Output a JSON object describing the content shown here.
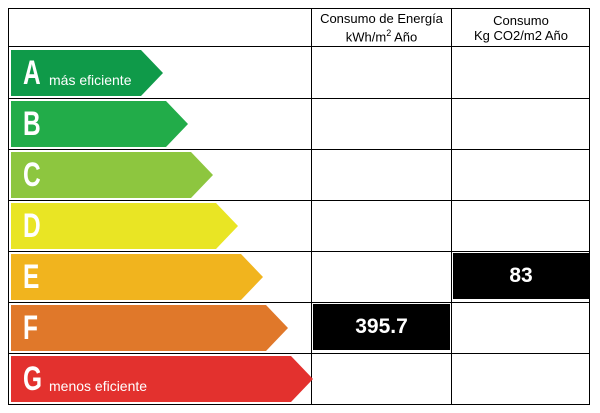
{
  "header": {
    "energy_line1": "Consumo de Energía",
    "energy_line2": "kWh/m",
    "energy_sup": "2",
    "energy_line2_end": " Año",
    "co2_line1": "Consumo",
    "co2_line2": "Kg CO2/m2 Año"
  },
  "ratings": [
    {
      "letter": "A",
      "label": "más eficiente",
      "color": "#0f9a49"
    },
    {
      "letter": "B",
      "label": "",
      "color": "#22ac49"
    },
    {
      "letter": "C",
      "label": "",
      "color": "#8dc63f"
    },
    {
      "letter": "D",
      "label": "",
      "color": "#e9e524"
    },
    {
      "letter": "E",
      "label": "",
      "color": "#f1b41e"
    },
    {
      "letter": "F",
      "label": "",
      "color": "#e0782a"
    },
    {
      "letter": "G",
      "label": "menos eficiente",
      "color": "#e3312e"
    }
  ],
  "values": {
    "energy": {
      "value": "395.7",
      "rating": "F"
    },
    "co2": {
      "value": "83",
      "rating": "E"
    }
  }
}
